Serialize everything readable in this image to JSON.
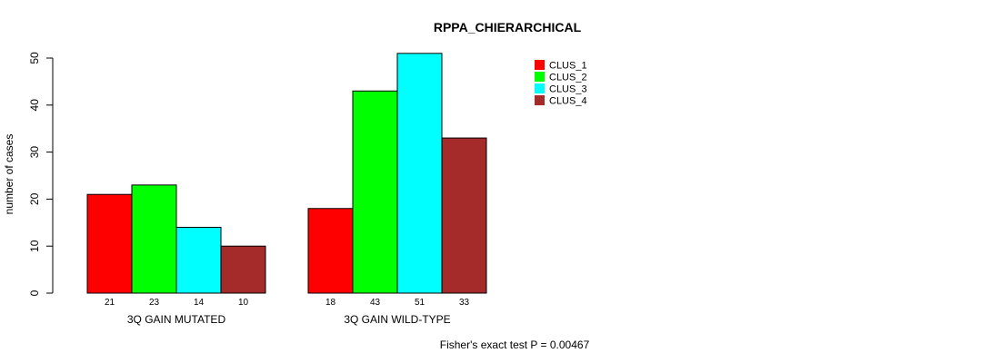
{
  "chart_data": {
    "type": "bar",
    "title": "RPPA_CHIERARCHICAL",
    "ylabel": "number of cases",
    "ylim": [
      0,
      50
    ],
    "yticks": [
      0,
      10,
      20,
      30,
      40,
      50
    ],
    "groups": [
      "3Q GAIN MUTATED",
      "3Q GAIN WILD-TYPE"
    ],
    "series": [
      {
        "name": "CLUS_1",
        "color": "#ff0000",
        "values": [
          21,
          18
        ]
      },
      {
        "name": "CLUS_2",
        "color": "#00ff00",
        "values": [
          23,
          43
        ]
      },
      {
        "name": "CLUS_3",
        "color": "#00ffff",
        "values": [
          14,
          51
        ]
      },
      {
        "name": "CLUS_4",
        "color": "#a52a2a",
        "values": [
          10,
          33
        ]
      }
    ],
    "legend_position": "top-right",
    "grid": false,
    "annotation": "Fisher's exact test P = 0.00467"
  }
}
